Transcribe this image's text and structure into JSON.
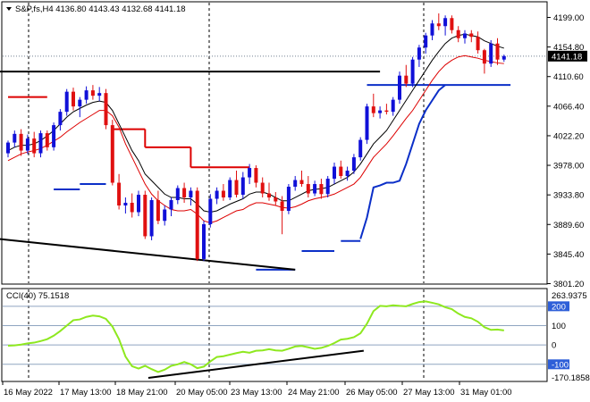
{
  "colors": {
    "bull_candle": "#1010d8",
    "bear_candle": "#e01010",
    "ma_fast": "#000000",
    "ma_slow": "#dd0000",
    "trail_up": "#0b2fc8",
    "trail_down": "#dd0000",
    "cci": "#8ee81f",
    "cci_level": "#8fa5c0",
    "trend_line": "#000000",
    "price_tag_bg": "#000000",
    "price_tag_text": "#ffffff",
    "cci_tag_blue": "#2e5fd8"
  },
  "chart_data": [
    {
      "type": "candlestick",
      "title": "S&P,fs,H4  4136.80 4143.43 4132.68 4141.18",
      "price_ticks": [
        "4199.00",
        "4154.80",
        "4110.60",
        "4066.40",
        "4022.20",
        "3978.00",
        "3933.80",
        "3889.60",
        "3845.40",
        "3801.20"
      ],
      "current_price_label": "4141.18",
      "current_price": 4141.18,
      "ylim": [
        3801.2,
        4210
      ],
      "candles": [
        [
          3996,
          4015,
          3990,
          4012
        ],
        [
          4012,
          4030,
          4005,
          4025
        ],
        [
          4025,
          4032,
          3992,
          4000
        ],
        [
          4000,
          4024,
          3995,
          4018
        ],
        [
          4018,
          4028,
          3990,
          3996
        ],
        [
          3996,
          4030,
          3990,
          4026
        ],
        [
          4026,
          4030,
          4000,
          4005
        ],
        [
          4005,
          4042,
          4000,
          4038
        ],
        [
          4038,
          4062,
          4030,
          4058
        ],
        [
          4058,
          4092,
          4052,
          4088
        ],
        [
          4088,
          4094,
          4060,
          4066
        ],
        [
          4066,
          4080,
          4050,
          4076
        ],
        [
          4076,
          4096,
          4070,
          4090
        ],
        [
          4090,
          4098,
          4076,
          4082
        ],
        [
          4082,
          4095,
          4074,
          4086
        ],
        [
          4086,
          4092,
          4032,
          4038
        ],
        [
          4038,
          4046,
          3948,
          3952
        ],
        [
          3952,
          3965,
          3912,
          3918
        ],
        [
          3918,
          3930,
          3906,
          3922
        ],
        [
          3922,
          3936,
          3900,
          3908
        ],
        [
          3908,
          3940,
          3902,
          3934
        ],
        [
          3934,
          3940,
          3868,
          3872
        ],
        [
          3872,
          3930,
          3866,
          3926
        ],
        [
          3926,
          3940,
          3890,
          3895
        ],
        [
          3895,
          3918,
          3888,
          3912
        ],
        [
          3912,
          3930,
          3902,
          3926
        ],
        [
          3926,
          3948,
          3920,
          3944
        ],
        [
          3944,
          3952,
          3922,
          3930
        ],
        [
          3930,
          3945,
          3918,
          3940
        ],
        [
          3940,
          3945,
          3835,
          3838
        ],
        [
          3838,
          3895,
          3835,
          3890
        ],
        [
          3890,
          3935,
          3885,
          3928
        ],
        [
          3928,
          3945,
          3920,
          3940
        ],
        [
          3940,
          3950,
          3925,
          3930
        ],
        [
          3930,
          3960,
          3926,
          3956
        ],
        [
          3956,
          3970,
          3930,
          3934
        ],
        [
          3934,
          3968,
          3928,
          3960
        ],
        [
          3960,
          3980,
          3950,
          3974
        ],
        [
          3974,
          3978,
          3945,
          3952
        ],
        [
          3952,
          3960,
          3930,
          3936
        ],
        [
          3936,
          3952,
          3925,
          3930
        ],
        [
          3930,
          3938,
          3918,
          3924
        ],
        [
          3924,
          3932,
          3875,
          3910
        ],
        [
          3910,
          3950,
          3905,
          3946
        ],
        [
          3946,
          3962,
          3940,
          3956
        ],
        [
          3956,
          3970,
          3946,
          3950
        ],
        [
          3950,
          3962,
          3930,
          3936
        ],
        [
          3936,
          3955,
          3932,
          3950
        ],
        [
          3950,
          3958,
          3928,
          3935
        ],
        [
          3935,
          3962,
          3930,
          3958
        ],
        [
          3958,
          3982,
          3950,
          3976
        ],
        [
          3976,
          3985,
          3958,
          3962
        ],
        [
          3962,
          3976,
          3955,
          3970
        ],
        [
          3970,
          3995,
          3965,
          3990
        ],
        [
          3990,
          4020,
          3985,
          4016
        ],
        [
          4016,
          4070,
          4010,
          4066
        ],
        [
          4066,
          4085,
          4050,
          4056
        ],
        [
          4056,
          4066,
          4048,
          4060
        ],
        [
          4060,
          4070,
          4054,
          4058
        ],
        [
          4058,
          4080,
          4052,
          4076
        ],
        [
          4076,
          4118,
          4070,
          4112
        ],
        [
          4112,
          4128,
          4095,
          4100
        ],
        [
          4100,
          4140,
          4095,
          4136
        ],
        [
          4136,
          4158,
          4125,
          4154
        ],
        [
          4154,
          4176,
          4145,
          4172
        ],
        [
          4172,
          4195,
          4165,
          4190
        ],
        [
          4190,
          4205,
          4180,
          4186
        ],
        [
          4186,
          4202,
          4172,
          4198
        ],
        [
          4198,
          4202,
          4175,
          4180
        ],
        [
          4180,
          4186,
          4162,
          4168
        ],
        [
          4168,
          4180,
          4160,
          4175
        ],
        [
          4175,
          4180,
          4162,
          4170
        ],
        [
          4170,
          4178,
          4145,
          4150
        ],
        [
          4150,
          4152,
          4115,
          4130
        ],
        [
          4130,
          4165,
          4125,
          4160
        ],
        [
          4160,
          4168,
          4128,
          4136
        ],
        [
          4136,
          4143.43,
          4132.68,
          4141.18
        ]
      ],
      "ma_fast": [
        4000,
        4005,
        4008,
        4008,
        4010,
        4015,
        4022,
        4030,
        4040,
        4050,
        4058,
        4063,
        4068,
        4072,
        4074,
        4072,
        4060,
        4040,
        4020,
        4000,
        3985,
        3965,
        3955,
        3945,
        3935,
        3930,
        3930,
        3928,
        3928,
        3920,
        3910,
        3908,
        3910,
        3915,
        3920,
        3924,
        3928,
        3935,
        3938,
        3938,
        3935,
        3930,
        3925,
        3925,
        3930,
        3935,
        3940,
        3942,
        3943,
        3945,
        3950,
        3955,
        3960,
        3968,
        3980,
        3995,
        4010,
        4020,
        4030,
        4045,
        4060,
        4075,
        4090,
        4105,
        4120,
        4135,
        4148,
        4160,
        4168,
        4172,
        4174,
        4172,
        4170,
        4164,
        4160,
        4156,
        4153
      ],
      "ma_slow": [
        3985,
        3990,
        3995,
        3998,
        4000,
        4003,
        4008,
        4014,
        4020,
        4028,
        4035,
        4042,
        4048,
        4054,
        4060,
        4060,
        4052,
        4035,
        4010,
        3990,
        3970,
        3950,
        3935,
        3925,
        3918,
        3912,
        3910,
        3910,
        3912,
        3905,
        3895,
        3892,
        3895,
        3900,
        3905,
        3910,
        3912,
        3918,
        3922,
        3922,
        3920,
        3918,
        3915,
        3914,
        3916,
        3920,
        3925,
        3928,
        3930,
        3932,
        3935,
        3940,
        3945,
        3950,
        3960,
        3975,
        3990,
        4000,
        4010,
        4022,
        4035,
        4048,
        4060,
        4075,
        4090,
        4105,
        4118,
        4128,
        4135,
        4140,
        4142,
        4140,
        4138,
        4135,
        4133,
        4131,
        4130
      ],
      "trail_down_segments": [
        {
          "i0": 0,
          "i1": 6,
          "v": 4080
        },
        {
          "i0": 16,
          "i1": 21,
          "v": 4032
        },
        {
          "i0": 21,
          "i1": 28,
          "v": 4005
        },
        {
          "i0": 28,
          "i1": 37,
          "v": 3975
        }
      ],
      "trail_up_segments": [
        {
          "i0": 7,
          "i1": 11,
          "v": 3942
        },
        {
          "i0": 11,
          "i1": 15,
          "v": 3950
        },
        {
          "i0": 38,
          "i1": 44,
          "v": 3822
        },
        {
          "i0": 45,
          "i1": 50,
          "v": 3850
        },
        {
          "i0": 51,
          "i1": 54,
          "v": 3865
        },
        {
          "i0": 55,
          "i1": 77,
          "v": 4098
        }
      ],
      "trail_up_curve": [
        [
          54,
          3868
        ],
        [
          55,
          3900
        ],
        [
          56,
          3945
        ],
        [
          57,
          3948
        ],
        [
          58,
          3952
        ],
        [
          59,
          3952
        ],
        [
          60,
          3955
        ],
        [
          61,
          3980
        ],
        [
          62,
          4010
        ],
        [
          63,
          4040
        ],
        [
          64,
          4060
        ],
        [
          65,
          4075
        ],
        [
          66,
          4090
        ],
        [
          67,
          4098
        ]
      ],
      "trend_lines": [
        {
          "i0": -1.5,
          "v0": 3868,
          "i1": 44,
          "v1": 3822
        },
        {
          "i0": -1.5,
          "v0": 4118,
          "i1": 57,
          "v1": 4118
        }
      ]
    },
    {
      "type": "line",
      "title": "CCI(40) 75.1518",
      "ylim": [
        -170.1858,
        263.9375
      ],
      "levels": [
        200,
        100,
        0,
        -100
      ],
      "level_labels": [
        "200",
        "100",
        "0",
        "-100"
      ],
      "top_label": "263.9375",
      "bottom_label": "-170.1858",
      "current_label": "75.1518",
      "values": [
        -4,
        -2,
        2,
        8,
        12,
        20,
        30,
        48,
        72,
        100,
        128,
        132,
        145,
        152,
        148,
        135,
        95,
        30,
        -60,
        -110,
        -122,
        -108,
        -125,
        -140,
        -128,
        -108,
        -100,
        -88,
        -100,
        -120,
        -112,
        -85,
        -62,
        -58,
        -50,
        -42,
        -35,
        -40,
        -30,
        -28,
        -22,
        -28,
        -30,
        -20,
        -8,
        -5,
        -12,
        -20,
        -15,
        -5,
        10,
        28,
        32,
        40,
        60,
        110,
        175,
        202,
        200,
        205,
        202,
        200,
        212,
        222,
        225,
        218,
        210,
        195,
        185,
        162,
        145,
        138,
        120,
        92,
        78,
        80,
        75
      ]
    }
  ],
  "x_axis_labels": [
    "16 May 2022",
    "17 May 13:00",
    "18 May 21:00",
    "20 May 05:00",
    "23 May 13:00",
    "24 May 21:00",
    "26 May 05:00",
    "27 May 13:00",
    "31 May 01:00"
  ]
}
